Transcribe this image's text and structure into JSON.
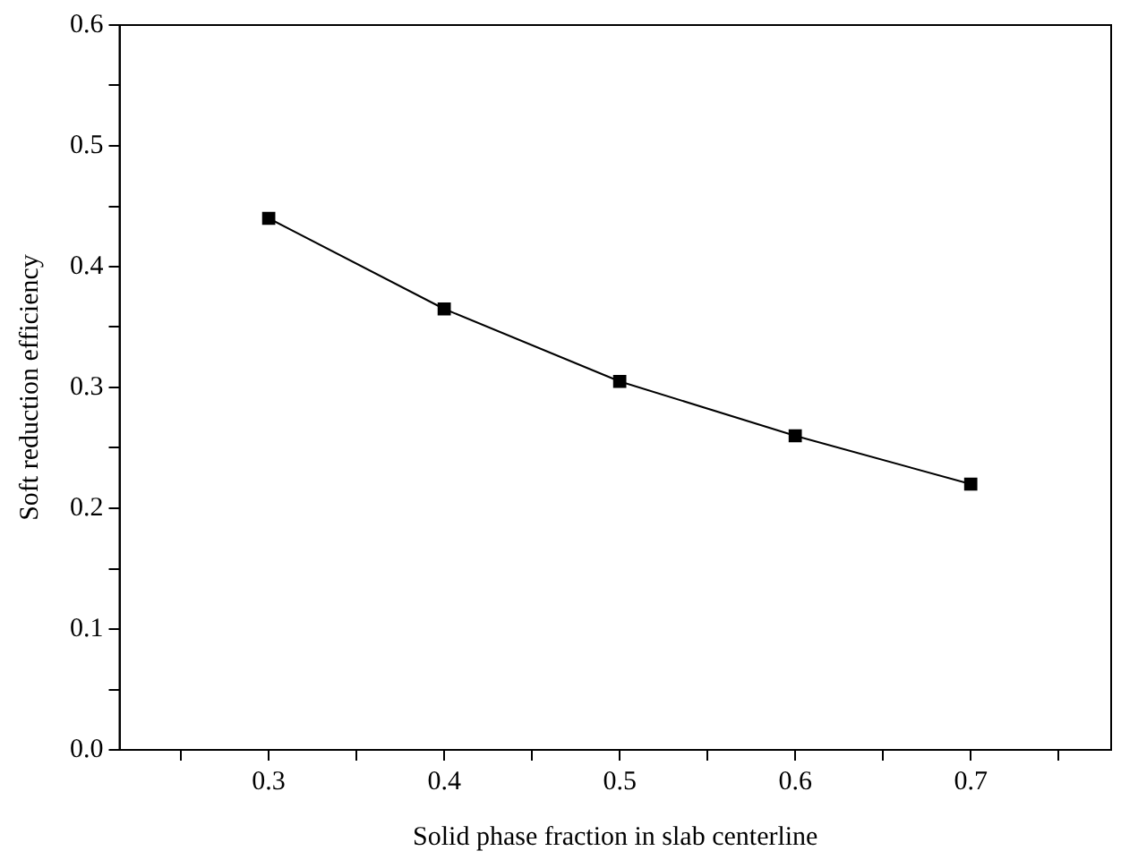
{
  "chart_data": {
    "type": "line",
    "xlabel": "Solid phase fraction in slab centerline",
    "ylabel": "Soft reduction efficiency",
    "x": [
      0.3,
      0.4,
      0.5,
      0.6,
      0.7
    ],
    "series": [
      {
        "color": "#000000",
        "values": [
          0.44,
          0.365,
          0.305,
          0.26,
          0.22
        ]
      }
    ],
    "xlim": [
      0.215,
      0.78
    ],
    "xticks": [
      {
        "value": 0.25,
        "label": null
      },
      {
        "value": 0.3,
        "label": "0.3"
      },
      {
        "value": 0.35,
        "label": null
      },
      {
        "value": 0.4,
        "label": "0.4"
      },
      {
        "value": 0.45,
        "label": null
      },
      {
        "value": 0.5,
        "label": "0.5"
      },
      {
        "value": 0.55,
        "label": null
      },
      {
        "value": 0.6,
        "label": "0.6"
      },
      {
        "value": 0.65,
        "label": null
      },
      {
        "value": 0.7,
        "label": "0.7"
      },
      {
        "value": 0.75,
        "label": null
      }
    ],
    "ylim": [
      0,
      0.6
    ],
    "yticks": [
      {
        "value": 0,
        "label": "0.0"
      },
      {
        "value": 0.05,
        "label": null
      },
      {
        "value": 0.1,
        "label": "0.1"
      },
      {
        "value": 0.15,
        "label": null
      },
      {
        "value": 0.2,
        "label": "0.2"
      },
      {
        "value": 0.25,
        "label": null
      },
      {
        "value": 0.3,
        "label": "0.3"
      },
      {
        "value": 0.35,
        "label": null
      },
      {
        "value": 0.4,
        "label": "0.4"
      },
      {
        "value": 0.45,
        "label": null
      },
      {
        "value": 0.5,
        "label": "0.5"
      },
      {
        "value": 0.55,
        "label": null
      },
      {
        "value": 0.6,
        "label": "0.6"
      }
    ],
    "marker": "square",
    "line_style": "solid",
    "grid": false,
    "legend": false
  }
}
